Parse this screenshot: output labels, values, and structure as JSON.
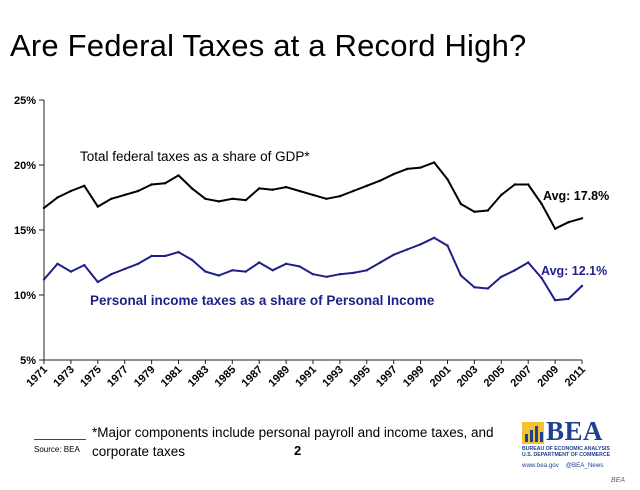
{
  "title": "Are Federal Taxes at a Record High?",
  "chart_data": {
    "type": "line",
    "title": "Are Federal Taxes at a Record High?",
    "xlabel": "",
    "ylabel": "",
    "ylim": [
      5,
      25
    ],
    "yticks": [
      "5%",
      "10%",
      "15%",
      "20%",
      "25%"
    ],
    "xticks": [
      "1971",
      "1973",
      "1975",
      "1977",
      "1979",
      "1981",
      "1983",
      "1985",
      "1987",
      "1989",
      "1991",
      "1993",
      "1995",
      "1997",
      "1999",
      "2001",
      "2003",
      "2005",
      "2007",
      "2009",
      "2011"
    ],
    "x": [
      1971,
      1972,
      1973,
      1974,
      1975,
      1976,
      1977,
      1978,
      1979,
      1980,
      1981,
      1982,
      1983,
      1984,
      1985,
      1986,
      1987,
      1988,
      1989,
      1990,
      1991,
      1992,
      1993,
      1994,
      1995,
      1996,
      1997,
      1998,
      1999,
      2000,
      2001,
      2002,
      2003,
      2004,
      2005,
      2006,
      2007,
      2008,
      2009,
      2010,
      2011
    ],
    "series": [
      {
        "name": "Total federal taxes as a share of GDP*",
        "color": "#000000",
        "values": [
          16.7,
          17.5,
          18.0,
          18.4,
          16.8,
          17.4,
          17.7,
          18.0,
          18.5,
          18.6,
          19.2,
          18.2,
          17.4,
          17.2,
          17.4,
          17.3,
          18.2,
          18.1,
          18.3,
          18.0,
          17.7,
          17.4,
          17.6,
          18.0,
          18.4,
          18.8,
          19.3,
          19.7,
          19.8,
          20.2,
          18.9,
          17.0,
          16.4,
          16.5,
          17.7,
          18.5,
          18.5,
          17.0,
          15.1,
          15.6,
          15.9
        ],
        "annotation": "Avg: 17.8%"
      },
      {
        "name": "Personal income taxes as a share of Personal Income",
        "color": "#1f1f8a",
        "values": [
          11.2,
          12.4,
          11.8,
          12.3,
          11.0,
          11.6,
          12.0,
          12.4,
          13.0,
          13.0,
          13.3,
          12.7,
          11.8,
          11.5,
          11.9,
          11.8,
          12.5,
          11.9,
          12.4,
          12.2,
          11.6,
          11.4,
          11.6,
          11.7,
          11.9,
          12.5,
          13.1,
          13.5,
          13.9,
          14.4,
          13.8,
          11.5,
          10.6,
          10.5,
          11.4,
          11.9,
          12.5,
          11.3,
          9.6,
          9.7,
          10.7
        ],
        "annotation": "Avg: 12.1%"
      }
    ],
    "grid": false,
    "legend": "inline labels"
  },
  "footnote": "*Major components include personal payroll and income taxes, and corporate taxes",
  "source": "Source: BEA",
  "page_number": "2",
  "logo": {
    "name": "BEA",
    "subtitle_1": "Bureau of Economic Analysis",
    "subtitle_2": "U.S. Department of Commerce",
    "website": "www.bea.gov",
    "twitter": "@BEA_News",
    "color": "#1f3f8f"
  },
  "watermark": "BEA"
}
